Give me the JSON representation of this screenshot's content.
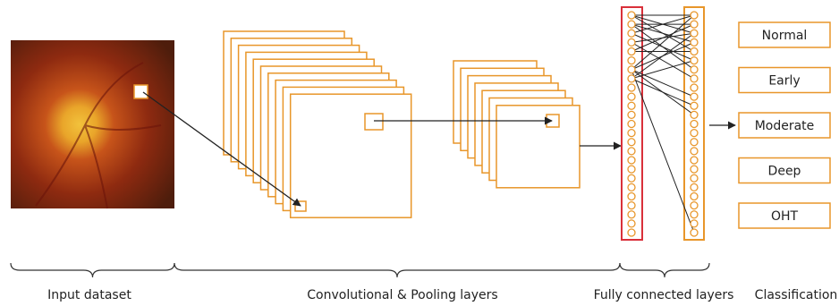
{
  "classes": [
    "Normal",
    "Early",
    "Moderate",
    "Deep",
    "OHT"
  ],
  "sections": [
    "Input dataset",
    "Convolutional & Pooling layers",
    "Fully connected layers",
    "Classification"
  ]
}
